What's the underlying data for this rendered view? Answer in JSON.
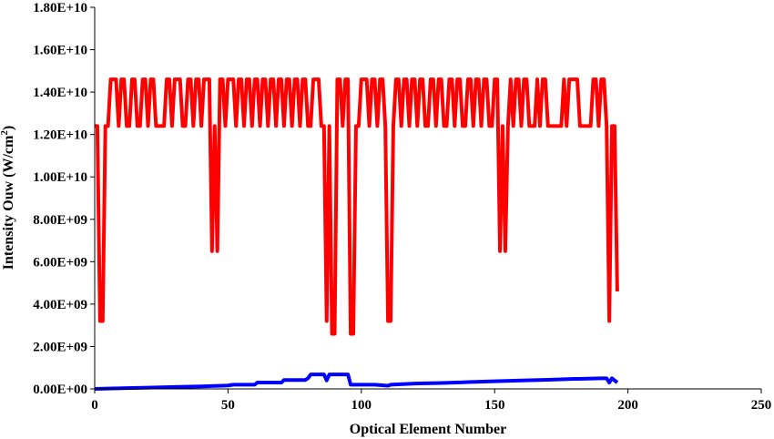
{
  "chart_data": {
    "type": "line",
    "title": "",
    "xlabel": "Optical Element Number",
    "ylabel": "Intensity Ouw (W/cm²)",
    "ylabel_main": "Intensity Ouw (W/cm",
    "ylabel_sup": "2",
    "ylabel_end": ")",
    "xlim": [
      0,
      250
    ],
    "ylim": [
      0,
      18000000000
    ],
    "xticks": [
      "0",
      "50",
      "100",
      "150",
      "200",
      "250"
    ],
    "yticks": [
      "0.00E+00",
      "2.00E+09",
      "4.00E+09",
      "6.00E+09",
      "8.00E+09",
      "1.00E+10",
      "1.20E+10",
      "1.40E+10",
      "1.60E+10",
      "1.80E+10"
    ],
    "grid": false,
    "legend": "none",
    "series": [
      {
        "color": "#ff0000",
        "points": [
          [
            0,
            12400000000
          ],
          [
            1,
            12400000000
          ],
          [
            2,
            3200000000
          ],
          [
            3,
            3200000000
          ],
          [
            4,
            12400000000
          ],
          [
            5,
            12400000000
          ],
          [
            6,
            14600000000
          ],
          [
            7,
            14600000000
          ],
          [
            8,
            14600000000
          ],
          [
            9,
            12400000000
          ],
          [
            10,
            14600000000
          ],
          [
            11,
            14600000000
          ],
          [
            12,
            12400000000
          ],
          [
            13,
            12400000000
          ],
          [
            14,
            14600000000
          ],
          [
            15,
            14600000000
          ],
          [
            16,
            12400000000
          ],
          [
            17,
            12400000000
          ],
          [
            18,
            14600000000
          ],
          [
            19,
            14600000000
          ],
          [
            20,
            12400000000
          ],
          [
            21,
            14600000000
          ],
          [
            22,
            14600000000
          ],
          [
            23,
            12400000000
          ],
          [
            24,
            12400000000
          ],
          [
            25,
            12400000000
          ],
          [
            26,
            12400000000
          ],
          [
            27,
            14600000000
          ],
          [
            28,
            14600000000
          ],
          [
            29,
            12400000000
          ],
          [
            30,
            14600000000
          ],
          [
            31,
            14600000000
          ],
          [
            32,
            14600000000
          ],
          [
            33,
            12400000000
          ],
          [
            34,
            12400000000
          ],
          [
            35,
            14600000000
          ],
          [
            36,
            14600000000
          ],
          [
            37,
            12400000000
          ],
          [
            38,
            14600000000
          ],
          [
            39,
            14600000000
          ],
          [
            40,
            12400000000
          ],
          [
            41,
            14600000000
          ],
          [
            42,
            14600000000
          ],
          [
            43,
            14600000000
          ],
          [
            44,
            6500000000
          ],
          [
            45,
            12400000000
          ],
          [
            46,
            6500000000
          ],
          [
            47,
            14600000000
          ],
          [
            48,
            14600000000
          ],
          [
            49,
            12400000000
          ],
          [
            50,
            14600000000
          ],
          [
            51,
            14600000000
          ],
          [
            52,
            14600000000
          ],
          [
            53,
            12400000000
          ],
          [
            54,
            14600000000
          ],
          [
            55,
            14600000000
          ],
          [
            56,
            12400000000
          ],
          [
            57,
            14600000000
          ],
          [
            58,
            14600000000
          ],
          [
            59,
            12400000000
          ],
          [
            60,
            14600000000
          ],
          [
            61,
            14600000000
          ],
          [
            62,
            12400000000
          ],
          [
            63,
            14600000000
          ],
          [
            64,
            14600000000
          ],
          [
            65,
            12400000000
          ],
          [
            66,
            14600000000
          ],
          [
            67,
            14600000000
          ],
          [
            68,
            12400000000
          ],
          [
            69,
            14600000000
          ],
          [
            70,
            14600000000
          ],
          [
            71,
            12400000000
          ],
          [
            72,
            14600000000
          ],
          [
            73,
            14600000000
          ],
          [
            74,
            12400000000
          ],
          [
            75,
            14600000000
          ],
          [
            76,
            14600000000
          ],
          [
            77,
            12400000000
          ],
          [
            78,
            14600000000
          ],
          [
            79,
            14600000000
          ],
          [
            80,
            12400000000
          ],
          [
            81,
            12400000000
          ],
          [
            82,
            14600000000
          ],
          [
            83,
            14600000000
          ],
          [
            84,
            14600000000
          ],
          [
            85,
            12400000000
          ],
          [
            86,
            12400000000
          ],
          [
            87,
            3200000000
          ],
          [
            88,
            12400000000
          ],
          [
            89,
            2600000000
          ],
          [
            90,
            2600000000
          ],
          [
            91,
            14600000000
          ],
          [
            92,
            14600000000
          ],
          [
            93,
            12400000000
          ],
          [
            94,
            14600000000
          ],
          [
            95,
            14600000000
          ],
          [
            96,
            2600000000
          ],
          [
            97,
            2600000000
          ],
          [
            98,
            12400000000
          ],
          [
            99,
            12400000000
          ],
          [
            100,
            14600000000
          ],
          [
            101,
            14600000000
          ],
          [
            102,
            14600000000
          ],
          [
            103,
            12400000000
          ],
          [
            104,
            14600000000
          ],
          [
            105,
            14600000000
          ],
          [
            106,
            12400000000
          ],
          [
            107,
            14600000000
          ],
          [
            108,
            14600000000
          ],
          [
            109,
            12400000000
          ],
          [
            110,
            3200000000
          ],
          [
            111,
            3200000000
          ],
          [
            112,
            12400000000
          ],
          [
            113,
            14600000000
          ],
          [
            114,
            14600000000
          ],
          [
            115,
            12400000000
          ],
          [
            116,
            14600000000
          ],
          [
            117,
            14600000000
          ],
          [
            118,
            12400000000
          ],
          [
            119,
            14600000000
          ],
          [
            120,
            14600000000
          ],
          [
            121,
            12400000000
          ],
          [
            122,
            14600000000
          ],
          [
            123,
            14600000000
          ],
          [
            124,
            12400000000
          ],
          [
            125,
            12400000000
          ],
          [
            126,
            14600000000
          ],
          [
            127,
            14600000000
          ],
          [
            128,
            12400000000
          ],
          [
            129,
            14600000000
          ],
          [
            130,
            14600000000
          ],
          [
            131,
            12400000000
          ],
          [
            132,
            12400000000
          ],
          [
            133,
            14600000000
          ],
          [
            134,
            14600000000
          ],
          [
            135,
            12400000000
          ],
          [
            136,
            14600000000
          ],
          [
            137,
            14600000000
          ],
          [
            138,
            12400000000
          ],
          [
            139,
            12400000000
          ],
          [
            140,
            14600000000
          ],
          [
            141,
            14600000000
          ],
          [
            142,
            12400000000
          ],
          [
            143,
            14600000000
          ],
          [
            144,
            14600000000
          ],
          [
            145,
            12400000000
          ],
          [
            146,
            14600000000
          ],
          [
            147,
            14600000000
          ],
          [
            148,
            12400000000
          ],
          [
            149,
            12400000000
          ],
          [
            150,
            14600000000
          ],
          [
            151,
            14600000000
          ],
          [
            152,
            6500000000
          ],
          [
            153,
            12400000000
          ],
          [
            154,
            6500000000
          ],
          [
            155,
            12400000000
          ],
          [
            156,
            14600000000
          ],
          [
            157,
            12400000000
          ],
          [
            158,
            14600000000
          ],
          [
            159,
            14600000000
          ],
          [
            160,
            12400000000
          ],
          [
            161,
            14600000000
          ],
          [
            162,
            14600000000
          ],
          [
            163,
            12400000000
          ],
          [
            164,
            12400000000
          ],
          [
            165,
            12400000000
          ],
          [
            166,
            14600000000
          ],
          [
            167,
            12400000000
          ],
          [
            168,
            14600000000
          ],
          [
            169,
            14600000000
          ],
          [
            170,
            12400000000
          ],
          [
            171,
            12400000000
          ],
          [
            172,
            12400000000
          ],
          [
            173,
            12400000000
          ],
          [
            174,
            12400000000
          ],
          [
            175,
            12400000000
          ],
          [
            176,
            14600000000
          ],
          [
            177,
            12400000000
          ],
          [
            178,
            14600000000
          ],
          [
            179,
            14600000000
          ],
          [
            180,
            14600000000
          ],
          [
            181,
            14600000000
          ],
          [
            182,
            12400000000
          ],
          [
            183,
            12400000000
          ],
          [
            184,
            12400000000
          ],
          [
            185,
            12400000000
          ],
          [
            186,
            12400000000
          ],
          [
            187,
            14600000000
          ],
          [
            188,
            14600000000
          ],
          [
            189,
            12400000000
          ],
          [
            190,
            14600000000
          ],
          [
            191,
            14600000000
          ],
          [
            192,
            12400000000
          ],
          [
            193,
            3200000000
          ],
          [
            194,
            12400000000
          ],
          [
            195,
            12400000000
          ],
          [
            196,
            4600000000
          ]
        ]
      },
      {
        "color": "#0000ff",
        "points": [
          [
            0,
            0
          ],
          [
            10,
            30000000
          ],
          [
            20,
            60000000
          ],
          [
            30,
            90000000
          ],
          [
            40,
            120000000
          ],
          [
            50,
            160000000
          ],
          [
            52,
            200000000
          ],
          [
            60,
            200000000
          ],
          [
            61,
            300000000
          ],
          [
            70,
            300000000
          ],
          [
            71,
            420000000
          ],
          [
            79,
            420000000
          ],
          [
            80,
            500000000
          ],
          [
            81,
            680000000
          ],
          [
            86,
            680000000
          ],
          [
            87,
            400000000
          ],
          [
            88,
            680000000
          ],
          [
            95,
            680000000
          ],
          [
            96,
            200000000
          ],
          [
            105,
            200000000
          ],
          [
            110,
            150000000
          ],
          [
            111,
            200000000
          ],
          [
            120,
            250000000
          ],
          [
            130,
            280000000
          ],
          [
            140,
            320000000
          ],
          [
            150,
            360000000
          ],
          [
            160,
            400000000
          ],
          [
            170,
            430000000
          ],
          [
            180,
            470000000
          ],
          [
            190,
            500000000
          ],
          [
            192,
            500000000
          ],
          [
            193,
            300000000
          ],
          [
            194,
            500000000
          ],
          [
            196,
            300000000
          ]
        ]
      }
    ]
  }
}
